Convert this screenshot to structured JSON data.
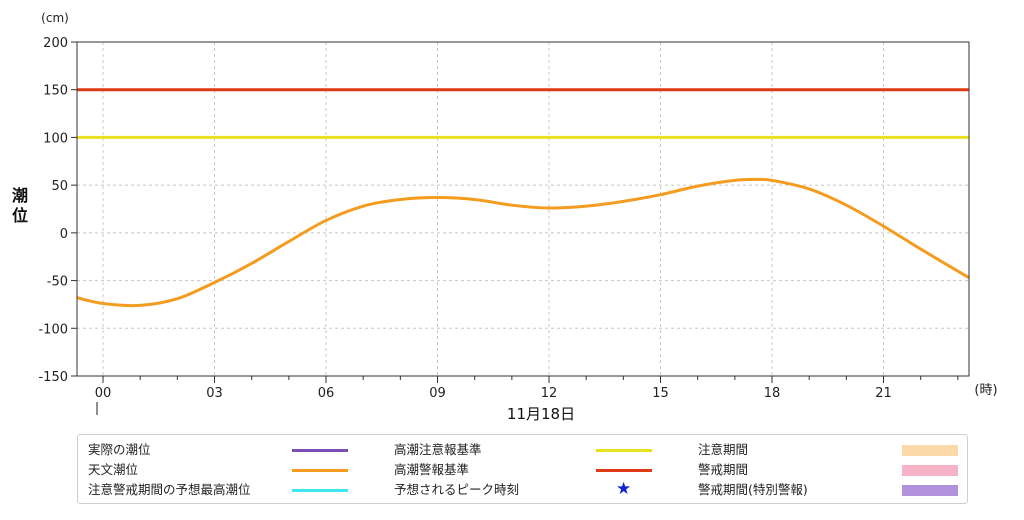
{
  "chart_data": {
    "type": "line",
    "unit_label": "(cm)",
    "ylabel": "潮位",
    "xlabel_unit": "(時)",
    "date_label": "11月18日",
    "ylim": [
      -150,
      200
    ],
    "yticks": [
      200,
      150,
      100,
      50,
      0,
      -50,
      -100,
      -150
    ],
    "xlim": [
      -0.7,
      23.3
    ],
    "xticks": [
      0,
      3,
      6,
      9,
      12,
      15,
      18,
      21
    ],
    "xtick_labels": [
      "00",
      "03",
      "06",
      "09",
      "12",
      "15",
      "18",
      "21"
    ],
    "grid": true,
    "series": [
      {
        "name": "天文潮位",
        "color": "#f39c1f",
        "x": [
          -0.7,
          0,
          1,
          2,
          3,
          4,
          5,
          6,
          7,
          8,
          9,
          10,
          11,
          12,
          13,
          14,
          15,
          16,
          17,
          17.6,
          18,
          19,
          20,
          21,
          22,
          23.3
        ],
        "y": [
          -68,
          -74,
          -76,
          -69,
          -52,
          -32,
          -9,
          13,
          28,
          35,
          37,
          35,
          29,
          26,
          28,
          33,
          40,
          49,
          55,
          56,
          55,
          46,
          29,
          7,
          -17,
          -47
        ]
      },
      {
        "name": "高潮注意報基準",
        "color": "#e8e020",
        "x": [
          -0.7,
          23.3
        ],
        "y": [
          100,
          100
        ]
      },
      {
        "name": "高潮警報基準",
        "color": "#e03a14",
        "x": [
          -0.7,
          23.3
        ],
        "y": [
          150,
          150
        ]
      }
    ]
  },
  "legend": {
    "items": [
      {
        "label": "実際の潮位",
        "kind": "line",
        "color": "#7a4fb8"
      },
      {
        "label": "高潮注意報基準",
        "kind": "line",
        "color": "#e8e020"
      },
      {
        "label": "注意期間",
        "kind": "box",
        "color": "#fbd9a8"
      },
      {
        "label": "天文潮位",
        "kind": "line",
        "color": "#f39c1f"
      },
      {
        "label": "高潮警報基準",
        "kind": "line",
        "color": "#e03a14"
      },
      {
        "label": "警戒期間",
        "kind": "box",
        "color": "#f6b3c8"
      },
      {
        "label": "注意警戒期間の予想最高潮位",
        "kind": "line",
        "color": "#3de6f0"
      },
      {
        "label": "予想されるピーク時刻",
        "kind": "star",
        "color": "#1024d6",
        "glyph": "★"
      },
      {
        "label": "警戒期間(特別警報)",
        "kind": "box",
        "color": "#b190dc"
      }
    ]
  }
}
